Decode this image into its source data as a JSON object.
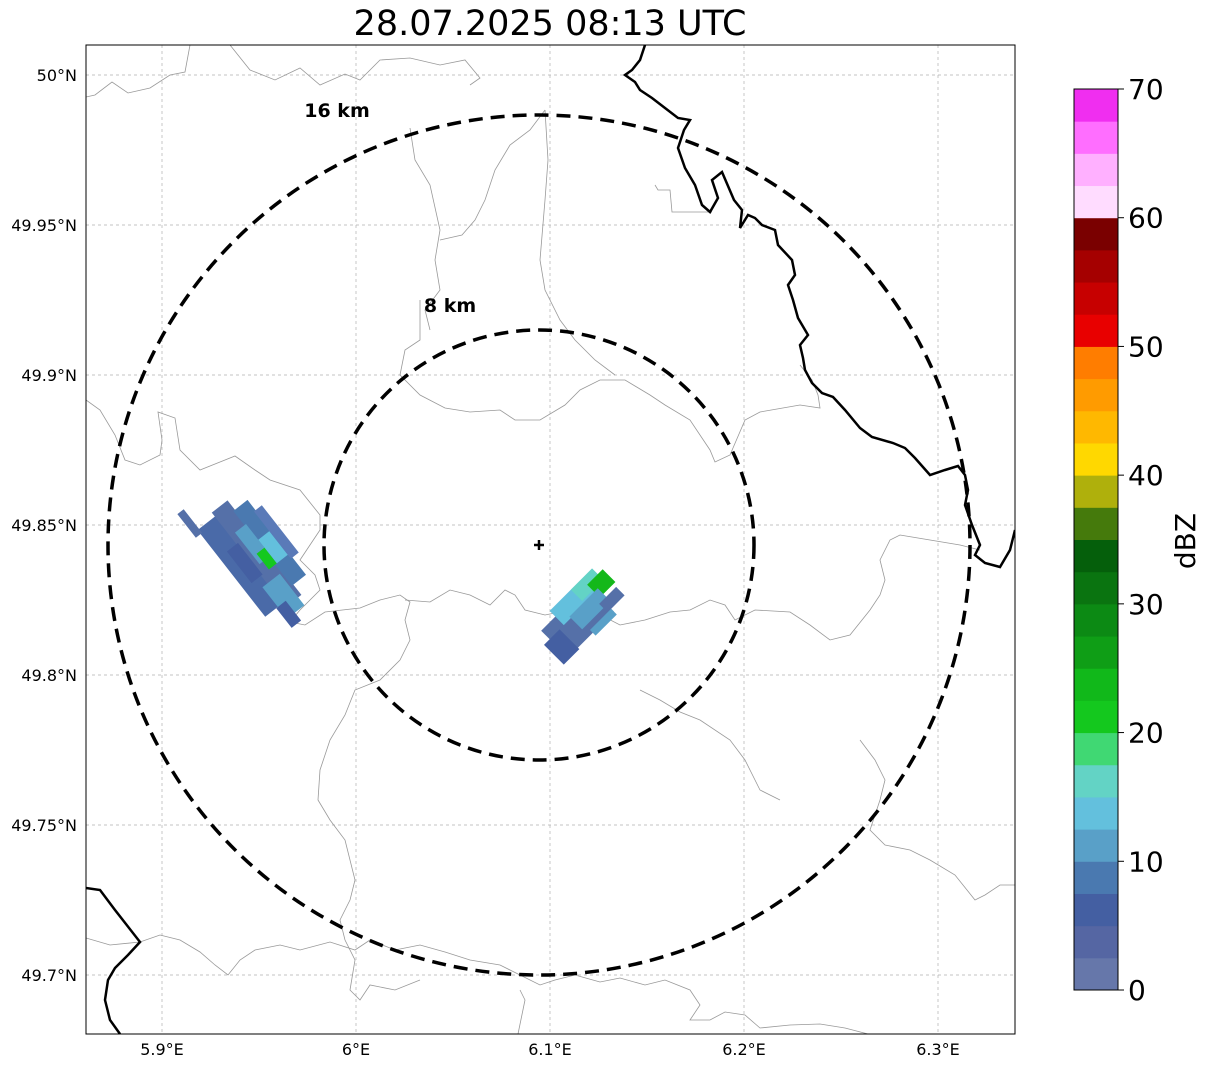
{
  "title": "28.07.2025 08:13 UTC",
  "map": {
    "range_rings": [
      {
        "label": "16 km",
        "radius_km": 16
      },
      {
        "label": "8 km",
        "radius_km": 8
      }
    ],
    "radar_site": {
      "lon": 6.095,
      "lat": 49.843
    },
    "lon_ticks": [
      "5.9°E",
      "6°E",
      "6.1°E",
      "6.2°E",
      "6.3°E"
    ],
    "lat_ticks": [
      "50°N",
      "49.95°N",
      "49.9°N",
      "49.85°N",
      "49.8°N",
      "49.75°N",
      "49.7°N"
    ],
    "extent": {
      "lon_min": 5.86,
      "lon_max": 6.34,
      "lat_min": 49.68,
      "lat_max": 50.01
    }
  },
  "colorbar": {
    "label": "dBZ",
    "ticks": [
      "0",
      "10",
      "20",
      "30",
      "40",
      "50",
      "60",
      "70"
    ],
    "range": [
      0,
      70
    ],
    "colors": [
      "#6677aa",
      "#5566a3",
      "#445fa2",
      "#4a79b0",
      "#59a0c8",
      "#63c0dd",
      "#63d3c5",
      "#40d873",
      "#14c81e",
      "#11b81a",
      "#0f9e16",
      "#0c8a14",
      "#0a7410",
      "#055f0b",
      "#457a0c",
      "#afb00c",
      "#ffd800",
      "#ffb800",
      "#ff9b00",
      "#ff7d00",
      "#e80000",
      "#c70000",
      "#a50000",
      "#7a0000",
      "#ffdcff",
      "#ffb0ff",
      "#ff6eff",
      "#f02ef0"
    ]
  }
}
